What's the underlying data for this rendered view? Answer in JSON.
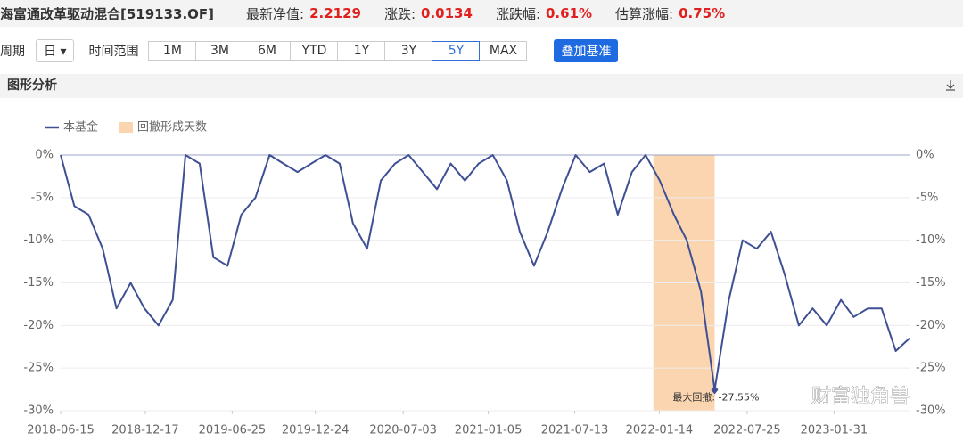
{
  "header": {
    "title": "海富通改革驱动混合[519133.OF]",
    "items": [
      {
        "key": "最新净值:",
        "value": "2.2129"
      },
      {
        "key": "涨跌:",
        "value": "0.0134"
      },
      {
        "key": "涨跌幅:",
        "value": "0.61%"
      },
      {
        "key": "估算涨幅:",
        "value": "0.75%"
      }
    ]
  },
  "controls": {
    "period_label": "周期",
    "period_value": "日",
    "range_label": "时间范围",
    "ranges": [
      "1M",
      "3M",
      "6M",
      "YTD",
      "1Y",
      "3Y",
      "5Y",
      "MAX"
    ],
    "selected": "5Y",
    "overlay": "叠加基准"
  },
  "section": {
    "title": "图形分析"
  },
  "watermark": "财富独角兽",
  "chart_data": {
    "type": "line",
    "x": [
      "2018-06-15",
      "2018-07-15",
      "2018-08-15",
      "2018-09-15",
      "2018-10-15",
      "2018-11-15",
      "2018-12-15",
      "2019-01-15",
      "2019-02-15",
      "2019-03-15",
      "2019-04-15",
      "2019-05-15",
      "2019-06-15",
      "2019-07-15",
      "2019-08-15",
      "2019-09-15",
      "2019-10-15",
      "2019-11-15",
      "2019-12-15",
      "2020-01-15",
      "2020-02-15",
      "2020-03-15",
      "2020-04-15",
      "2020-05-15",
      "2020-06-15",
      "2020-07-15",
      "2020-08-15",
      "2020-09-15",
      "2020-10-15",
      "2020-11-15",
      "2020-12-15",
      "2021-01-15",
      "2021-02-15",
      "2021-03-15",
      "2021-04-15",
      "2021-05-15",
      "2021-06-15",
      "2021-07-15",
      "2021-08-15",
      "2021-09-15",
      "2021-10-15",
      "2021-11-15",
      "2021-12-15",
      "2022-01-15",
      "2022-02-15",
      "2022-03-15",
      "2022-04-15",
      "2022-05-15",
      "2022-06-15",
      "2022-07-15",
      "2022-08-15",
      "2022-09-15",
      "2022-10-15",
      "2022-11-15",
      "2022-12-15",
      "2023-01-15",
      "2023-02-15",
      "2023-03-15",
      "2023-04-15",
      "2023-05-15",
      "2023-06-15",
      "2023-07-15"
    ],
    "series": [
      {
        "name": "本基金",
        "color": "#3f4f94",
        "values": [
          0,
          -6,
          -7,
          -11,
          -18,
          -15,
          -18,
          -20,
          -17,
          0,
          -1,
          -12,
          -13,
          -7,
          -5,
          0,
          -1,
          -2,
          -1,
          0,
          -1,
          -8,
          -11,
          -3,
          -1,
          0,
          -2,
          -4,
          -1,
          -3,
          -1,
          0,
          -3,
          -9,
          -13,
          -9,
          -4,
          0,
          -2,
          -1,
          -7,
          -2,
          0,
          -3,
          -7,
          -10,
          -16,
          -27.55,
          -17,
          -10,
          -11,
          -9,
          -14,
          -20,
          -18,
          -20,
          -17,
          -19,
          -18,
          -18,
          -23,
          -21.5
        ]
      }
    ],
    "shade": {
      "name": "回撤形成天数",
      "color": "#fbd5b0",
      "range": [
        "2022-01-01",
        "2022-05-15"
      ]
    },
    "annotation": {
      "text": "最大回撤: -27.55%",
      "x": "2022-05-15",
      "value": -27.55
    },
    "xlim": [
      "2018-06-15",
      "2023-07-15"
    ],
    "xticks": [
      "2018-06-15",
      "2018-12-17",
      "2019-06-25",
      "2019-12-24",
      "2020-07-03",
      "2021-01-05",
      "2021-07-13",
      "2022-01-14",
      "2022-07-25",
      "2023-01-31"
    ],
    "ylim": [
      -30,
      0
    ],
    "yticks": [
      {
        "value": 0,
        "label": "0%"
      },
      {
        "value": -5,
        "label": "-5%"
      },
      {
        "value": -10,
        "label": "-10%"
      },
      {
        "value": -15,
        "label": "-15%"
      },
      {
        "value": -20,
        "label": "-20%"
      },
      {
        "value": -25,
        "label": "-25%"
      },
      {
        "value": -30,
        "label": "-30%"
      }
    ],
    "grid": true
  }
}
